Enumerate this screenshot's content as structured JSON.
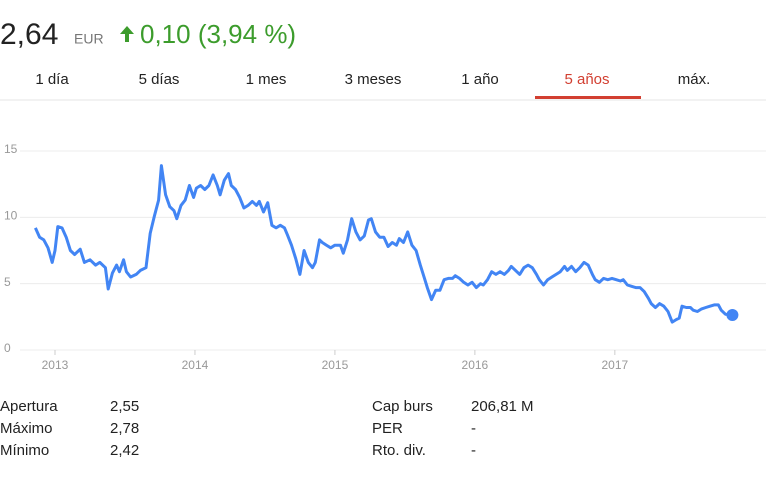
{
  "header": {
    "price": "2,64",
    "currency": "EUR",
    "change": "0,10 (3,94 %)"
  },
  "tabs": {
    "items": [
      "1 día",
      "5 días",
      "1 mes",
      "3 meses",
      "1 año",
      "5 años",
      "máx."
    ],
    "selected": 5
  },
  "chart_data": {
    "type": "line",
    "x": [
      2012.86,
      2012.89,
      2012.92,
      2012.95,
      2012.98,
      2013.0,
      2013.02,
      2013.05,
      2013.08,
      2013.11,
      2013.14,
      2013.18,
      2013.21,
      2013.25,
      2013.29,
      2013.32,
      2013.36,
      2013.38,
      2013.41,
      2013.44,
      2013.46,
      2013.49,
      2013.51,
      2013.54,
      2013.58,
      2013.61,
      2013.65,
      2013.68,
      2013.71,
      2013.74,
      2013.76,
      2013.79,
      2013.82,
      2013.85,
      2013.87,
      2013.9,
      2013.93,
      2013.96,
      2013.99,
      2014.01,
      2014.04,
      2014.07,
      2014.1,
      2014.13,
      2014.16,
      2014.18,
      2014.21,
      2014.24,
      2014.26,
      2014.29,
      2014.32,
      2014.35,
      2014.38,
      2014.41,
      2014.44,
      2014.46,
      2014.49,
      2014.52,
      2014.55,
      2014.58,
      2014.61,
      2014.64,
      2014.66,
      2014.69,
      2014.72,
      2014.75,
      2014.78,
      2014.81,
      2014.84,
      2014.86,
      2014.89,
      2014.91,
      2014.94,
      2014.97,
      2015.0,
      2015.04,
      2015.06,
      2015.09,
      2015.12,
      2015.15,
      2015.18,
      2015.21,
      2015.24,
      2015.26,
      2015.29,
      2015.32,
      2015.35,
      2015.38,
      2015.41,
      2015.44,
      2015.46,
      2015.49,
      2015.52,
      2015.55,
      2015.58,
      2015.61,
      2015.64,
      2015.66,
      2015.69,
      2015.72,
      2015.75,
      2015.78,
      2015.81,
      2015.84,
      2015.86,
      2015.89,
      2015.92,
      2015.95,
      2015.98,
      2016.01,
      2016.04,
      2016.06,
      2016.09,
      2016.12,
      2016.15,
      2016.18,
      2016.21,
      2016.24,
      2016.26,
      2016.29,
      2016.32,
      2016.35,
      2016.38,
      2016.41,
      2016.44,
      2016.46,
      2016.49,
      2016.52,
      2016.55,
      2016.58,
      2016.61,
      2016.64,
      2016.66,
      2016.69,
      2016.72,
      2016.75,
      2016.78,
      2016.81,
      2016.84,
      2016.86,
      2016.89,
      2016.92,
      2016.95,
      2016.98,
      2017.01,
      2017.04,
      2017.06,
      2017.09,
      2017.12,
      2017.15,
      2017.18,
      2017.21,
      2017.24,
      2017.26,
      2017.29,
      2017.32,
      2017.35,
      2017.38,
      2017.41,
      2017.44,
      2017.46,
      2017.48,
      2017.51,
      2017.54,
      2017.56,
      2017.59,
      2017.62,
      2017.65,
      2017.68,
      2017.71,
      2017.74,
      2017.76,
      2017.79,
      2017.84
    ],
    "values": [
      9.2,
      8.5,
      8.3,
      7.7,
      6.6,
      7.5,
      9.3,
      9.2,
      8.5,
      7.5,
      7.2,
      7.6,
      6.6,
      6.8,
      6.4,
      6.6,
      6.2,
      4.6,
      5.8,
      6.4,
      5.9,
      6.8,
      5.9,
      5.5,
      5.7,
      6.0,
      6.2,
      8.8,
      10.1,
      11.3,
      13.9,
      11.7,
      10.8,
      10.5,
      9.9,
      10.9,
      11.3,
      12.4,
      11.5,
      12.2,
      12.4,
      12.1,
      12.4,
      13.2,
      12.4,
      11.7,
      12.8,
      13.3,
      12.4,
      12.1,
      11.5,
      10.7,
      10.9,
      11.2,
      10.9,
      11.2,
      10.4,
      11.1,
      9.4,
      9.2,
      9.4,
      9.2,
      8.7,
      7.9,
      6.9,
      5.7,
      7.5,
      6.6,
      6.2,
      6.6,
      8.3,
      8.1,
      7.9,
      7.7,
      7.9,
      7.9,
      7.3,
      8.3,
      9.9,
      8.9,
      8.3,
      8.6,
      9.8,
      9.9,
      8.9,
      8.5,
      8.5,
      7.8,
      8.1,
      7.9,
      8.4,
      8.1,
      8.9,
      7.9,
      7.5,
      6.4,
      5.4,
      4.7,
      3.8,
      4.5,
      4.5,
      5.3,
      5.4,
      5.4,
      5.6,
      5.4,
      5.1,
      4.9,
      5.1,
      4.7,
      5.0,
      4.9,
      5.3,
      5.9,
      5.7,
      5.9,
      5.7,
      6.0,
      6.3,
      6.0,
      5.7,
      6.2,
      6.4,
      6.2,
      5.7,
      5.3,
      4.9,
      5.3,
      5.5,
      5.7,
      5.9,
      6.3,
      6.0,
      6.3,
      5.9,
      6.2,
      6.6,
      6.4,
      5.7,
      5.3,
      5.1,
      5.4,
      5.3,
      5.4,
      5.3,
      5.2,
      5.3,
      4.9,
      4.8,
      4.7,
      4.7,
      4.4,
      3.9,
      3.5,
      3.2,
      3.5,
      3.3,
      2.9,
      2.1,
      2.3,
      2.4,
      3.3,
      3.2,
      3.2,
      3.0,
      2.9,
      3.1,
      3.2,
      3.3,
      3.4,
      3.4,
      3.0,
      2.7,
      2.64
    ],
    "color": "#4285f4",
    "xlim": [
      2012.75,
      2018.08
    ],
    "xticks": [
      2013,
      2014,
      2015,
      2016,
      2017
    ],
    "ylim": [
      0,
      15
    ],
    "yticks": [
      0,
      5,
      10,
      15
    ],
    "grid": true
  },
  "stats": {
    "left": [
      {
        "label": "Apertura",
        "value": "2,55"
      },
      {
        "label": "Máximo",
        "value": "2,78"
      },
      {
        "label": "Mínimo",
        "value": "2,42"
      }
    ],
    "right": [
      {
        "label": "Cap burs",
        "value": "206,81 M"
      },
      {
        "label": "PER",
        "value": "-"
      },
      {
        "label": "Rto. div.",
        "value": "-"
      }
    ]
  }
}
